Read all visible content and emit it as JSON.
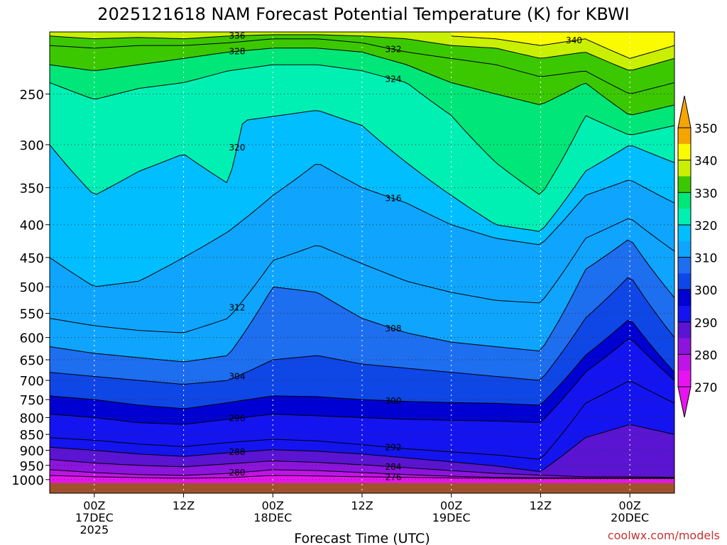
{
  "chart_data": {
    "type": "contour",
    "title": "2025121618 NAM Forecast Potential Temperature (K) for KBWI",
    "xlabel": "Forecast Time (UTC)",
    "ylabel": "",
    "credit": "coolwx.com/models",
    "y_axis": {
      "units": "hPa",
      "scale": "log",
      "inverted": true,
      "ylim": [
        200,
        1050
      ],
      "ticks": [
        250,
        300,
        350,
        400,
        450,
        500,
        550,
        600,
        650,
        700,
        750,
        800,
        850,
        900,
        950,
        1000
      ]
    },
    "x_axis": {
      "units": "forecast hour",
      "xlim": [
        0,
        84
      ],
      "ticks": [
        {
          "hour": 6,
          "lines": [
            "00Z",
            "17DEC",
            "2025"
          ]
        },
        {
          "hour": 18,
          "lines": [
            "12Z"
          ]
        },
        {
          "hour": 30,
          "lines": [
            "00Z",
            "18DEC"
          ]
        },
        {
          "hour": 42,
          "lines": [
            "12Z"
          ]
        },
        {
          "hour": 54,
          "lines": [
            "00Z",
            "19DEC"
          ]
        },
        {
          "hour": 66,
          "lines": [
            "12Z"
          ]
        },
        {
          "hour": 78,
          "lines": [
            "00Z",
            "20DEC"
          ]
        }
      ]
    },
    "colorbar": {
      "labels": [
        350,
        340,
        330,
        320,
        310,
        300,
        290,
        280,
        270
      ],
      "bands": [
        {
          "from": 345,
          "to": 350,
          "color": "#f5a500"
        },
        {
          "from": 340,
          "to": 345,
          "color": "#fafa00"
        },
        {
          "from": 335,
          "to": 340,
          "color": "#c8f000"
        },
        {
          "from": 330,
          "to": 335,
          "color": "#3cc800"
        },
        {
          "from": 325,
          "to": 330,
          "color": "#00e678"
        },
        {
          "from": 320,
          "to": 325,
          "color": "#00f0b4"
        },
        {
          "from": 315,
          "to": 320,
          "color": "#00beff"
        },
        {
          "from": 310,
          "to": 315,
          "color": "#0fa5ff"
        },
        {
          "from": 305,
          "to": 310,
          "color": "#1e6ef0"
        },
        {
          "from": 300,
          "to": 305,
          "color": "#0f46e6"
        },
        {
          "from": 295,
          "to": 300,
          "color": "#0000d2"
        },
        {
          "from": 290,
          "to": 295,
          "color": "#1414f0"
        },
        {
          "from": 285,
          "to": 290,
          "color": "#5a14d2"
        },
        {
          "from": 280,
          "to": 285,
          "color": "#8c14dc"
        },
        {
          "from": 275,
          "to": 280,
          "color": "#be14e6"
        },
        {
          "from": 270,
          "to": 275,
          "color": "#e614f0"
        }
      ]
    },
    "contour_interval": 4,
    "terrain_color": "#a0522d",
    "isentropes": [
      {
        "theta": 276,
        "label": "276",
        "points": [
          [
            0,
            985
          ],
          [
            6,
            990
          ],
          [
            12,
            993
          ],
          [
            18,
            995
          ],
          [
            24,
            993
          ],
          [
            30,
            985
          ],
          [
            36,
            987
          ],
          [
            42,
            990
          ],
          [
            48,
            992
          ],
          [
            54,
            994
          ],
          [
            60,
            995
          ],
          [
            66,
            996
          ],
          [
            72,
            996
          ],
          [
            78,
            996
          ],
          [
            84,
            996
          ]
        ]
      },
      {
        "theta": 280,
        "label": "280",
        "points": [
          [
            0,
            965
          ],
          [
            6,
            975
          ],
          [
            12,
            982
          ],
          [
            18,
            985
          ],
          [
            24,
            978
          ],
          [
            30,
            965
          ],
          [
            36,
            968
          ],
          [
            42,
            975
          ],
          [
            48,
            982
          ],
          [
            54,
            988
          ],
          [
            60,
            992
          ],
          [
            66,
            993
          ],
          [
            72,
            994
          ],
          [
            78,
            994
          ],
          [
            84,
            994
          ]
        ]
      },
      {
        "theta": 284,
        "label": "284",
        "points": [
          [
            0,
            930
          ],
          [
            6,
            942
          ],
          [
            12,
            950
          ],
          [
            18,
            955
          ],
          [
            24,
            945
          ],
          [
            30,
            935
          ],
          [
            36,
            940
          ],
          [
            42,
            948
          ],
          [
            48,
            958
          ],
          [
            54,
            968
          ],
          [
            60,
            978
          ],
          [
            66,
            984
          ],
          [
            72,
            990
          ],
          [
            78,
            990
          ],
          [
            84,
            992
          ]
        ]
      },
      {
        "theta": 288,
        "label": "288",
        "points": [
          [
            0,
            890
          ],
          [
            6,
            900
          ],
          [
            12,
            912
          ],
          [
            18,
            920
          ],
          [
            24,
            908
          ],
          [
            30,
            898
          ],
          [
            36,
            903
          ],
          [
            42,
            912
          ],
          [
            48,
            925
          ],
          [
            54,
            938
          ],
          [
            60,
            952
          ],
          [
            66,
            972
          ],
          [
            72,
            860
          ],
          [
            78,
            820
          ],
          [
            84,
            850
          ]
        ]
      },
      {
        "theta": 292,
        "label": "292",
        "points": [
          [
            0,
            860
          ],
          [
            6,
            868
          ],
          [
            12,
            880
          ],
          [
            18,
            888
          ],
          [
            24,
            875
          ],
          [
            30,
            865
          ],
          [
            36,
            870
          ],
          [
            42,
            882
          ],
          [
            48,
            895
          ],
          [
            54,
            905
          ],
          [
            60,
            915
          ],
          [
            66,
            930
          ],
          [
            72,
            760
          ],
          [
            78,
            700
          ],
          [
            84,
            760
          ]
        ]
      },
      {
        "theta": 296,
        "label": "296",
        "points": [
          [
            0,
            790
          ],
          [
            6,
            800
          ],
          [
            12,
            815
          ],
          [
            18,
            820
          ],
          [
            24,
            805
          ],
          [
            30,
            790
          ],
          [
            36,
            795
          ],
          [
            42,
            800
          ],
          [
            48,
            805
          ],
          [
            54,
            808
          ],
          [
            60,
            810
          ],
          [
            66,
            815
          ],
          [
            72,
            680
          ],
          [
            78,
            600
          ],
          [
            84,
            700
          ]
        ]
      },
      {
        "theta": 300,
        "label": "300",
        "points": [
          [
            0,
            740
          ],
          [
            6,
            750
          ],
          [
            12,
            765
          ],
          [
            18,
            775
          ],
          [
            24,
            758
          ],
          [
            30,
            740
          ],
          [
            36,
            742
          ],
          [
            42,
            750
          ],
          [
            48,
            755
          ],
          [
            54,
            758
          ],
          [
            60,
            760
          ],
          [
            66,
            765
          ],
          [
            72,
            640
          ],
          [
            78,
            560
          ],
          [
            84,
            680
          ]
        ]
      },
      {
        "theta": 304,
        "label": "304",
        "points": [
          [
            0,
            680
          ],
          [
            6,
            690
          ],
          [
            12,
            700
          ],
          [
            18,
            710
          ],
          [
            24,
            700
          ],
          [
            30,
            650
          ],
          [
            36,
            640
          ],
          [
            42,
            660
          ],
          [
            48,
            670
          ],
          [
            54,
            680
          ],
          [
            60,
            690
          ],
          [
            66,
            700
          ],
          [
            72,
            560
          ],
          [
            78,
            480
          ],
          [
            84,
            600
          ]
        ]
      },
      {
        "theta": 308,
        "label": "308",
        "points": [
          [
            0,
            620
          ],
          [
            6,
            635
          ],
          [
            12,
            645
          ],
          [
            18,
            655
          ],
          [
            24,
            640
          ],
          [
            30,
            500
          ],
          [
            36,
            510
          ],
          [
            42,
            560
          ],
          [
            48,
            590
          ],
          [
            54,
            610
          ],
          [
            60,
            620
          ],
          [
            66,
            630
          ],
          [
            72,
            470
          ],
          [
            78,
            420
          ],
          [
            84,
            520
          ]
        ]
      },
      {
        "theta": 312,
        "label": "312",
        "points": [
          [
            0,
            560
          ],
          [
            6,
            575
          ],
          [
            12,
            585
          ],
          [
            18,
            590
          ],
          [
            24,
            560
          ],
          [
            30,
            455
          ],
          [
            36,
            430
          ],
          [
            42,
            460
          ],
          [
            48,
            490
          ],
          [
            54,
            510
          ],
          [
            60,
            525
          ],
          [
            66,
            530
          ],
          [
            72,
            420
          ],
          [
            78,
            390
          ],
          [
            84,
            440
          ]
        ]
      },
      {
        "theta": 316,
        "label": "316",
        "points": [
          [
            0,
            450
          ],
          [
            6,
            500
          ],
          [
            12,
            490
          ],
          [
            18,
            450
          ],
          [
            24,
            410
          ],
          [
            30,
            360
          ],
          [
            36,
            320
          ],
          [
            42,
            350
          ],
          [
            48,
            370
          ],
          [
            54,
            400
          ],
          [
            60,
            420
          ],
          [
            66,
            430
          ],
          [
            72,
            360
          ],
          [
            78,
            340
          ],
          [
            84,
            370
          ]
        ]
      },
      {
        "theta": 320,
        "label": "320",
        "points": [
          [
            0,
            300
          ],
          [
            6,
            360
          ],
          [
            12,
            330
          ],
          [
            18,
            310
          ],
          [
            24,
            345
          ],
          [
            26,
            275
          ],
          [
            36,
            265
          ],
          [
            42,
            280
          ],
          [
            48,
            320
          ],
          [
            54,
            360
          ],
          [
            60,
            400
          ],
          [
            66,
            410
          ],
          [
            72,
            330
          ],
          [
            78,
            300
          ],
          [
            84,
            320
          ]
        ]
      },
      {
        "theta": 324,
        "label": "324",
        "points": [
          [
            0,
            240
          ],
          [
            6,
            255
          ],
          [
            12,
            245
          ],
          [
            18,
            240
          ],
          [
            24,
            230
          ],
          [
            30,
            225
          ],
          [
            36,
            225
          ],
          [
            42,
            230
          ],
          [
            48,
            240
          ],
          [
            54,
            270
          ],
          [
            60,
            320
          ],
          [
            66,
            360
          ],
          [
            72,
            270
          ],
          [
            78,
            290
          ],
          [
            84,
            280
          ]
        ]
      },
      {
        "theta": 328,
        "label": "328",
        "points": [
          [
            0,
            225
          ],
          [
            6,
            230
          ],
          [
            12,
            225
          ],
          [
            18,
            220
          ],
          [
            24,
            215
          ],
          [
            30,
            212
          ],
          [
            36,
            212
          ],
          [
            42,
            215
          ],
          [
            48,
            225
          ],
          [
            54,
            240
          ],
          [
            60,
            250
          ],
          [
            66,
            260
          ],
          [
            72,
            240
          ],
          [
            78,
            270
          ],
          [
            84,
            260
          ]
        ]
      },
      {
        "theta": 332,
        "label": "332",
        "points": [
          [
            0,
            210
          ],
          [
            6,
            212
          ],
          [
            12,
            210
          ],
          [
            18,
            210
          ],
          [
            24,
            208
          ],
          [
            30,
            205
          ],
          [
            36,
            205
          ],
          [
            42,
            208
          ],
          [
            48,
            215
          ],
          [
            54,
            220
          ],
          [
            60,
            225
          ],
          [
            66,
            235
          ],
          [
            72,
            230
          ],
          [
            78,
            250
          ],
          [
            84,
            240
          ]
        ]
      },
      {
        "theta": 336,
        "label": "336",
        "points": [
          [
            0,
            203
          ],
          [
            6,
            205
          ],
          [
            12,
            204
          ],
          [
            18,
            205
          ],
          [
            24,
            203
          ],
          [
            30,
            202
          ],
          [
            36,
            202
          ],
          [
            42,
            203
          ],
          [
            48,
            205
          ],
          [
            54,
            210
          ],
          [
            60,
            212
          ],
          [
            66,
            220
          ],
          [
            72,
            215
          ],
          [
            78,
            230
          ],
          [
            84,
            220
          ]
        ]
      },
      {
        "theta": 340,
        "label": "340",
        "points": [
          [
            54,
            203
          ],
          [
            60,
            205
          ],
          [
            66,
            210
          ],
          [
            72,
            205
          ],
          [
            78,
            220
          ],
          [
            84,
            210
          ]
        ]
      }
    ]
  }
}
